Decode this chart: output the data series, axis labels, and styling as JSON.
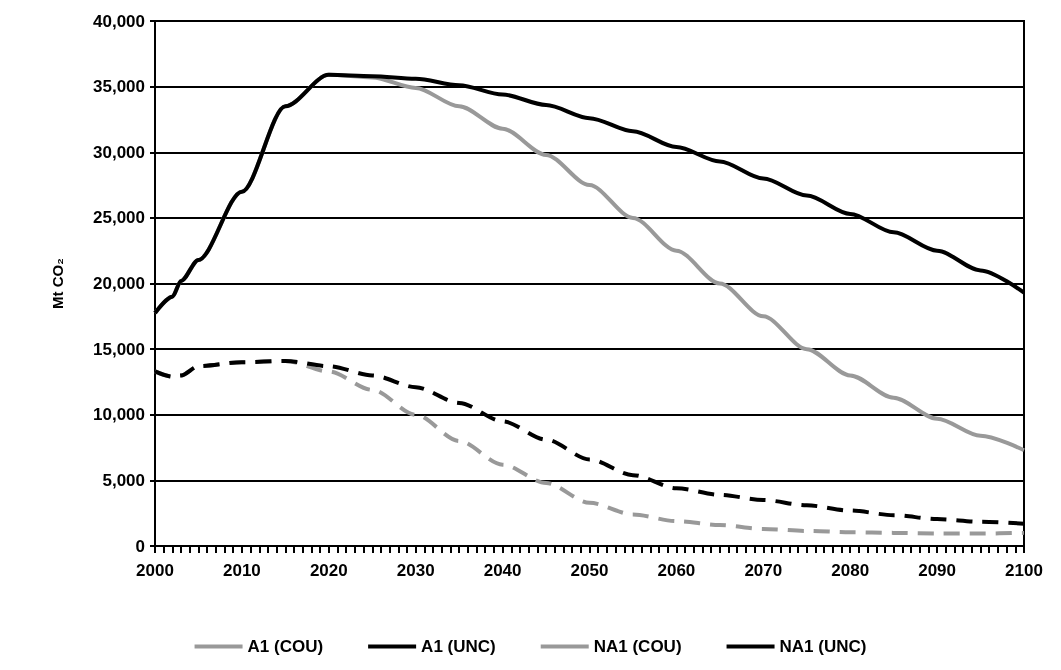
{
  "chart_data": {
    "type": "line",
    "ylabel": "Mt CO₂",
    "xlim": [
      2000,
      2100
    ],
    "ylim": [
      0,
      40000
    ],
    "yticks": [
      {
        "value": 0,
        "label": "0"
      },
      {
        "value": 5000,
        "label": "5,000"
      },
      {
        "value": 10000,
        "label": "10,000"
      },
      {
        "value": 15000,
        "label": "15,000"
      },
      {
        "value": 20000,
        "label": "20,000"
      },
      {
        "value": 25000,
        "label": "25,000"
      },
      {
        "value": 30000,
        "label": "30,000"
      },
      {
        "value": 35000,
        "label": "35,000"
      },
      {
        "value": 40000,
        "label": "40,000"
      }
    ],
    "xticks": [
      2000,
      {
        "value": 2001,
        "label": null
      },
      {
        "value": 2002,
        "label": null
      },
      {
        "value": 2003,
        "label": null
      },
      {
        "value": 2004,
        "label": null
      },
      {
        "value": 2005,
        "label": null
      },
      {
        "value": 2006,
        "label": null
      },
      {
        "value": 2007,
        "label": null
      },
      {
        "value": 2008,
        "label": null
      },
      {
        "value": 2009,
        "label": null
      },
      2010,
      {
        "value": 2011,
        "label": null
      },
      {
        "value": 2012,
        "label": null
      },
      {
        "value": 2013,
        "label": null
      },
      {
        "value": 2014,
        "label": null
      },
      {
        "value": 2015,
        "label": null
      },
      {
        "value": 2016,
        "label": null
      },
      {
        "value": 2017,
        "label": null
      },
      {
        "value": 2018,
        "label": null
      },
      {
        "value": 2019,
        "label": null
      },
      2020,
      {
        "value": 2021,
        "label": null
      },
      {
        "value": 2022,
        "label": null
      },
      {
        "value": 2023,
        "label": null
      },
      {
        "value": 2024,
        "label": null
      },
      {
        "value": 2025,
        "label": null
      },
      {
        "value": 2026,
        "label": null
      },
      {
        "value": 2027,
        "label": null
      },
      {
        "value": 2028,
        "label": null
      },
      {
        "value": 2029,
        "label": null
      },
      2030,
      {
        "value": 2031,
        "label": null
      },
      {
        "value": 2032,
        "label": null
      },
      {
        "value": 2033,
        "label": null
      },
      {
        "value": 2034,
        "label": null
      },
      {
        "value": 2035,
        "label": null
      },
      {
        "value": 2036,
        "label": null
      },
      {
        "value": 2037,
        "label": null
      },
      {
        "value": 2038,
        "label": null
      },
      {
        "value": 2039,
        "label": null
      },
      2040,
      {
        "value": 2041,
        "label": null
      },
      {
        "value": 2042,
        "label": null
      },
      {
        "value": 2043,
        "label": null
      },
      {
        "value": 2044,
        "label": null
      },
      {
        "value": 2045,
        "label": null
      },
      {
        "value": 2046,
        "label": null
      },
      {
        "value": 2047,
        "label": null
      },
      {
        "value": 2048,
        "label": null
      },
      {
        "value": 2049,
        "label": null
      },
      2050,
      {
        "value": 2051,
        "label": null
      },
      {
        "value": 2052,
        "label": null
      },
      {
        "value": 2053,
        "label": null
      },
      {
        "value": 2054,
        "label": null
      },
      {
        "value": 2055,
        "label": null
      },
      {
        "value": 2056,
        "label": null
      },
      {
        "value": 2057,
        "label": null
      },
      {
        "value": 2058,
        "label": null
      },
      {
        "value": 2059,
        "label": null
      },
      2060,
      {
        "value": 2061,
        "label": null
      },
      {
        "value": 2062,
        "label": null
      },
      {
        "value": 2063,
        "label": null
      },
      {
        "value": 2064,
        "label": null
      },
      {
        "value": 2065,
        "label": null
      },
      {
        "value": 2066,
        "label": null
      },
      {
        "value": 2067,
        "label": null
      },
      {
        "value": 2068,
        "label": null
      },
      {
        "value": 2069,
        "label": null
      },
      2070,
      {
        "value": 2071,
        "label": null
      },
      {
        "value": 2072,
        "label": null
      },
      {
        "value": 2073,
        "label": null
      },
      {
        "value": 2074,
        "label": null
      },
      {
        "value": 2075,
        "label": null
      },
      {
        "value": 2076,
        "label": null
      },
      {
        "value": 2077,
        "label": null
      },
      {
        "value": 2078,
        "label": null
      },
      {
        "value": 2079,
        "label": null
      },
      2080,
      {
        "value": 2081,
        "label": null
      },
      {
        "value": 2082,
        "label": null
      },
      {
        "value": 2083,
        "label": null
      },
      {
        "value": 2084,
        "label": null
      },
      {
        "value": 2085,
        "label": null
      },
      {
        "value": 2086,
        "label": null
      },
      {
        "value": 2087,
        "label": null
      },
      {
        "value": 2088,
        "label": null
      },
      {
        "value": 2089,
        "label": null
      },
      2090,
      {
        "value": 2091,
        "label": null
      },
      {
        "value": 2092,
        "label": null
      },
      {
        "value": 2093,
        "label": null
      },
      {
        "value": 2094,
        "label": null
      },
      {
        "value": 2095,
        "label": null
      },
      {
        "value": 2096,
        "label": null
      },
      {
        "value": 2097,
        "label": null
      },
      {
        "value": 2098,
        "label": null
      },
      {
        "value": 2099,
        "label": null
      },
      2100
    ],
    "x": [
      2000,
      2002,
      2003,
      2005,
      2010,
      2015,
      2020,
      2025,
      2030,
      2035,
      2040,
      2045,
      2050,
      2055,
      2060,
      2065,
      2070,
      2075,
      2080,
      2085,
      2090,
      2095,
      2100
    ],
    "grid": "y",
    "legend": "bottom",
    "marker": "none",
    "series": [
      {
        "name": "A1 (COU)",
        "color": "#999999",
        "line_style": "dashed",
        "values": [
          13300,
          12900,
          13000,
          13700,
          14000,
          14100,
          13300,
          11900,
          10000,
          8000,
          6200,
          4800,
          3300,
          2400,
          1900,
          1600,
          1300,
          1150,
          1050,
          1000,
          950,
          950,
          1000
        ]
      },
      {
        "name": "A1 (UNC)",
        "color": "#000000",
        "line_style": "dashed",
        "values": [
          13300,
          12900,
          13000,
          13700,
          14000,
          14100,
          13700,
          13000,
          12100,
          10900,
          9500,
          8100,
          6600,
          5400,
          4400,
          3900,
          3500,
          3100,
          2700,
          2350,
          2050,
          1850,
          1700
        ]
      },
      {
        "name": "NA1 (COU)",
        "color": "#999999",
        "line_style": "solid",
        "values": [
          17750,
          19000,
          20200,
          21800,
          27000,
          33500,
          35900,
          35700,
          34900,
          33500,
          31800,
          29800,
          27500,
          25000,
          22500,
          20000,
          17500,
          15000,
          13000,
          11300,
          9700,
          8400,
          7300
        ]
      },
      {
        "name": "NA1 (UNC)",
        "color": "#000000",
        "line_style": "solid",
        "values": [
          17750,
          19000,
          20200,
          21800,
          27000,
          33500,
          35900,
          35800,
          35600,
          35100,
          34400,
          33600,
          32600,
          31600,
          30400,
          29300,
          28000,
          26700,
          25300,
          23900,
          22500,
          21000,
          19300
        ]
      }
    ]
  }
}
